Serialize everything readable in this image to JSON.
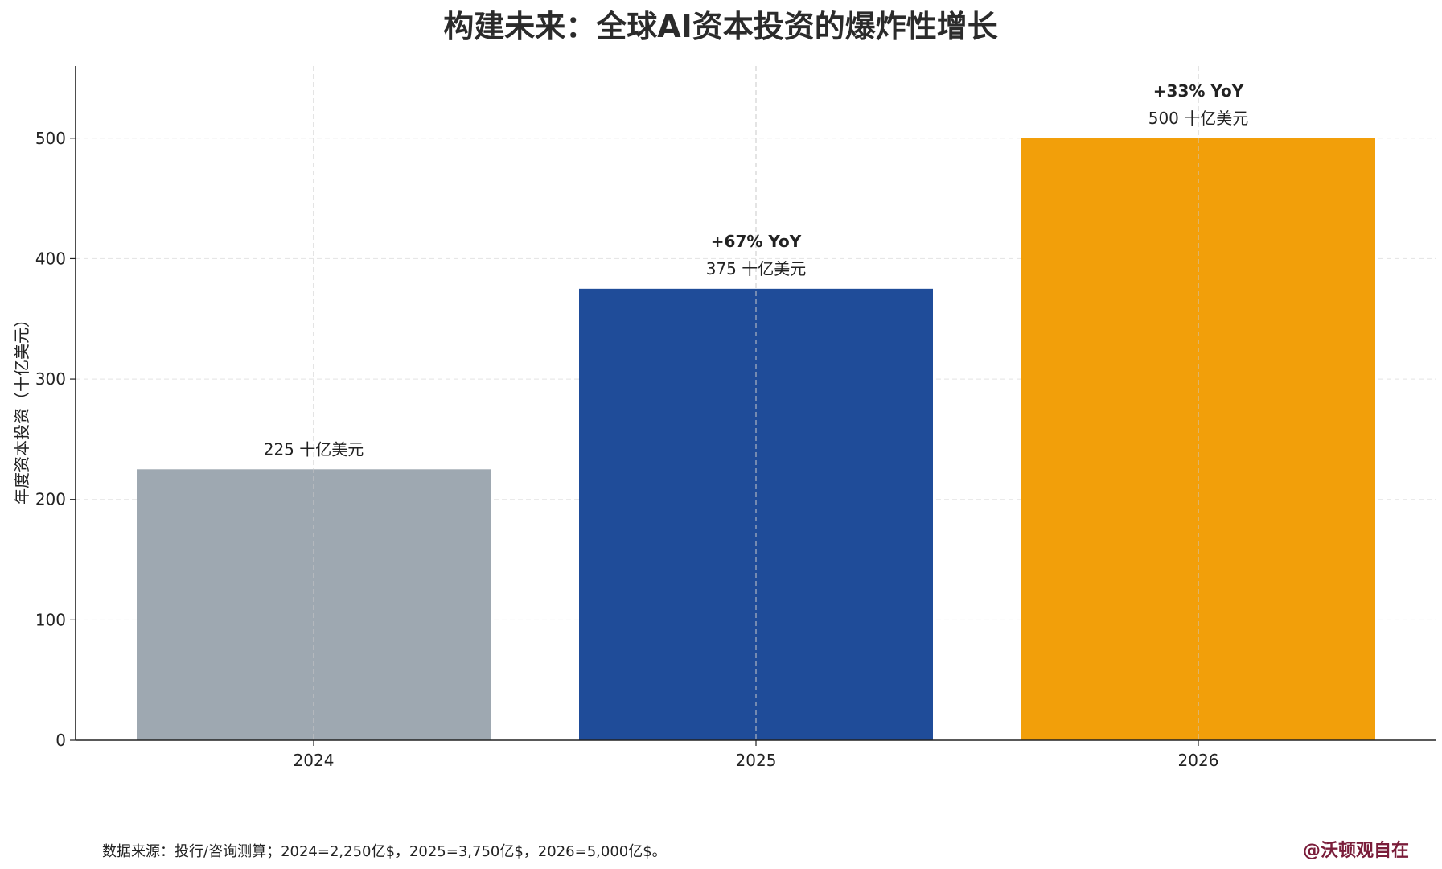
{
  "chart_data": {
    "type": "bar",
    "title": "构建未来：全球AI资本投资的爆炸性增长",
    "xlabel": "",
    "ylabel": "年度资本投资（十亿美元）",
    "categories": [
      "2024",
      "2025",
      "2026"
    ],
    "values": [
      225,
      375,
      500
    ],
    "colors": [
      "#9ea8b1",
      "#1f4c99",
      "#f29f0a"
    ],
    "value_labels": [
      "225 十亿美元",
      "375 十亿美元",
      "500 十亿美元"
    ],
    "yoy_labels": [
      "",
      "+67% YoY",
      "+33% YoY"
    ],
    "ylim": [
      0,
      560
    ],
    "yticks": [
      0,
      100,
      200,
      300,
      400,
      500
    ],
    "grid": true
  },
  "footer": {
    "source": "数据来源：投行/咨询测算；2024=2,250亿$，2025=3,750亿$，2026=5,000亿$。",
    "signature": "@沃顿观自在"
  }
}
